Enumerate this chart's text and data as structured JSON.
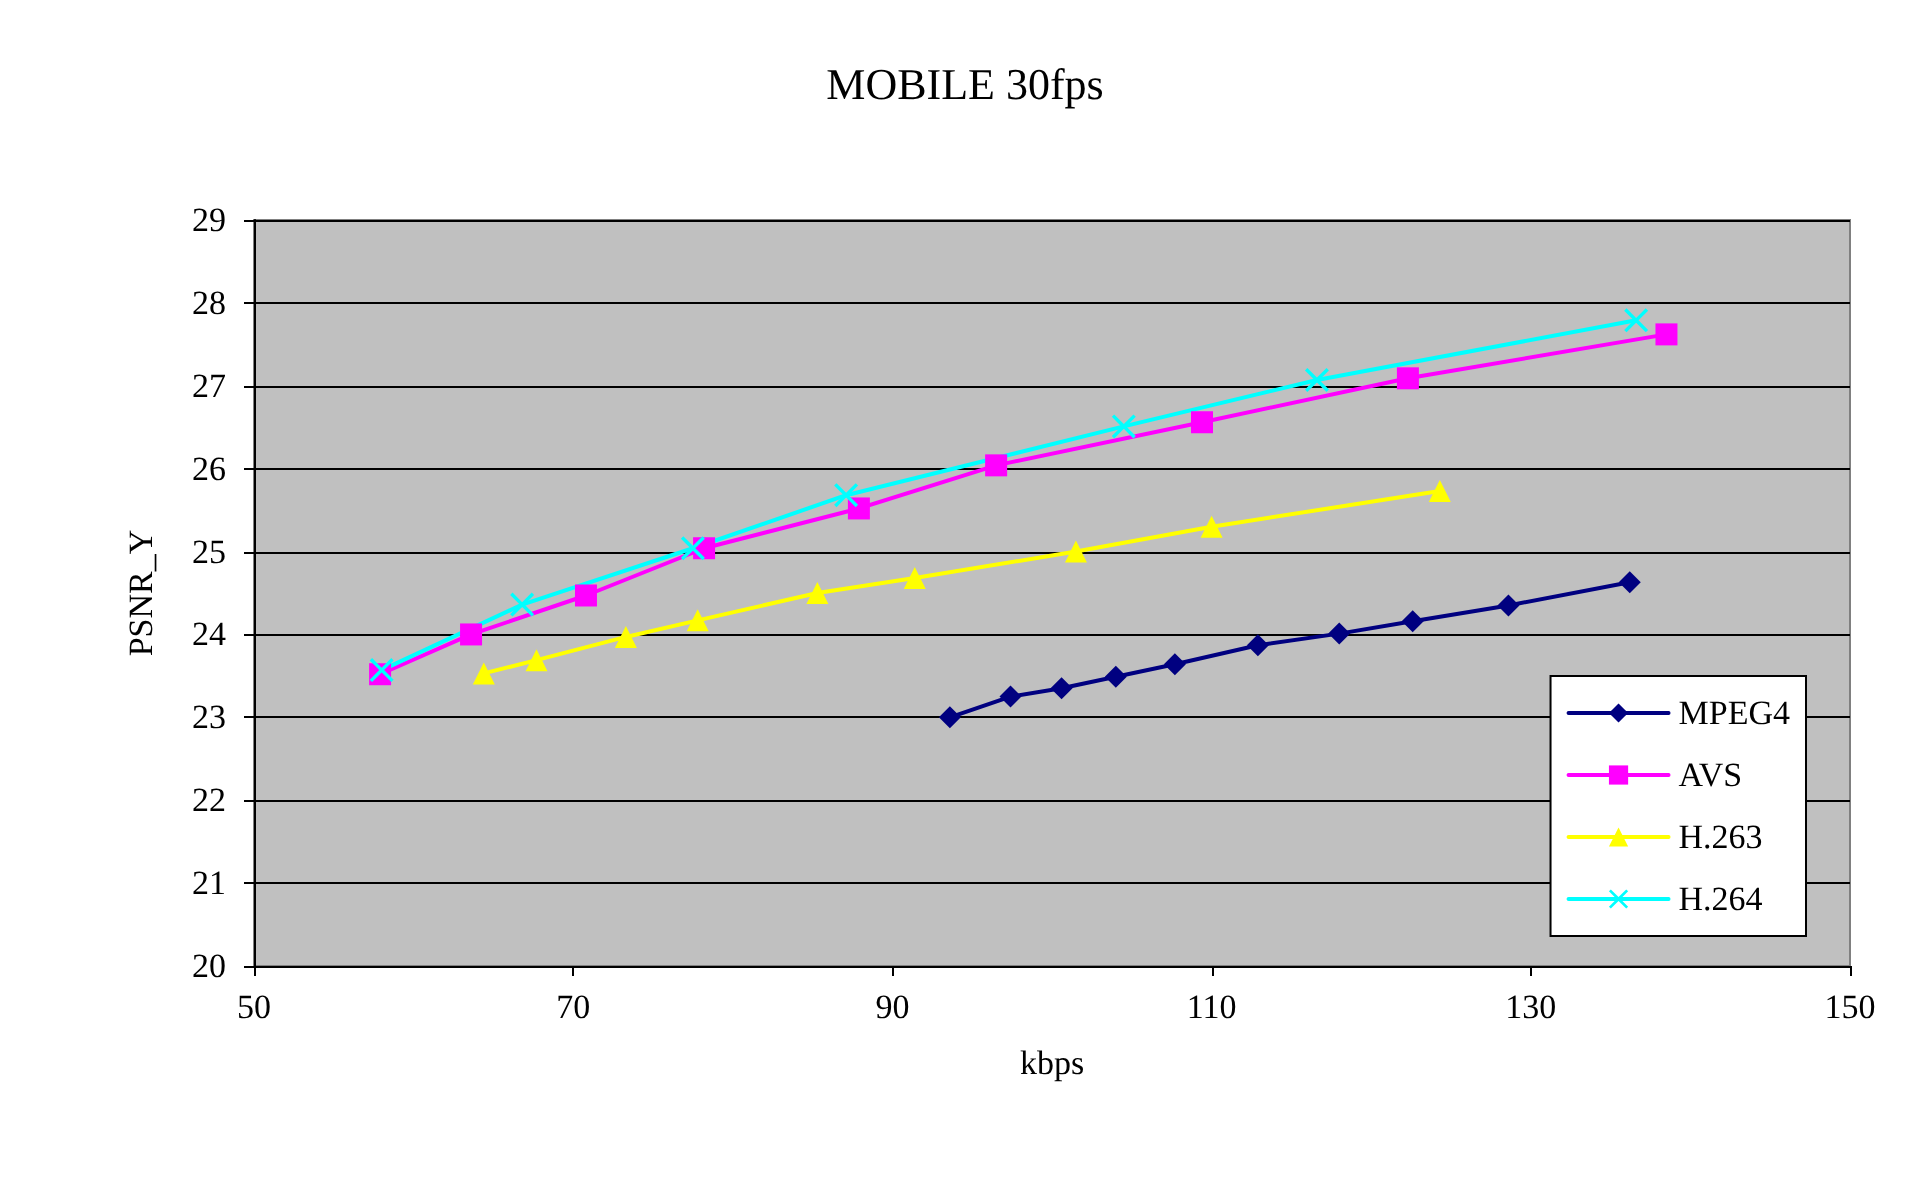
{
  "chart_data": {
    "type": "line",
    "title": "MOBILE 30fps",
    "xlabel": "kbps",
    "ylabel": "PSNR_Y",
    "xlim": [
      50,
      150
    ],
    "xticks": [
      50,
      70,
      90,
      110,
      130,
      150
    ],
    "ylim": [
      20,
      29
    ],
    "yticks": [
      20,
      21,
      22,
      23,
      24,
      25,
      26,
      27,
      28,
      29
    ],
    "grid": "y",
    "legend": "bottom right",
    "line_style": "solid",
    "series": [
      {
        "name": "MPEG4",
        "color": "#000080",
        "marker": "diamond",
        "x": [
          93.6,
          97.4,
          100.6,
          104.0,
          107.7,
          112.9,
          118.0,
          122.6,
          128.6,
          136.2
        ],
        "values": [
          23.0,
          23.25,
          23.35,
          23.49,
          23.64,
          23.87,
          24.01,
          24.16,
          24.35,
          24.63
        ]
      },
      {
        "name": "AVS",
        "color": "#ff00ff",
        "marker": "square",
        "x": [
          57.9,
          63.6,
          70.8,
          78.2,
          87.9,
          96.5,
          109.4,
          122.3,
          138.5
        ],
        "values": [
          23.52,
          24.0,
          24.47,
          25.04,
          25.52,
          26.04,
          26.56,
          27.09,
          27.62
        ]
      },
      {
        "name": "H.263",
        "color": "#ffff00",
        "marker": "triangle",
        "x": [
          64.4,
          67.7,
          73.3,
          77.8,
          85.3,
          91.4,
          101.5,
          110.0,
          124.3
        ],
        "values": [
          23.53,
          23.69,
          23.97,
          24.17,
          24.5,
          24.68,
          25.0,
          25.3,
          25.73
        ]
      },
      {
        "name": "H.264",
        "color": "#00ffff",
        "marker": "cross",
        "x": [
          58.0,
          66.8,
          77.5,
          87.1,
          104.5,
          116.6,
          136.6
        ],
        "values": [
          23.57,
          24.36,
          25.04,
          25.68,
          26.51,
          27.07,
          27.79
        ]
      }
    ]
  }
}
